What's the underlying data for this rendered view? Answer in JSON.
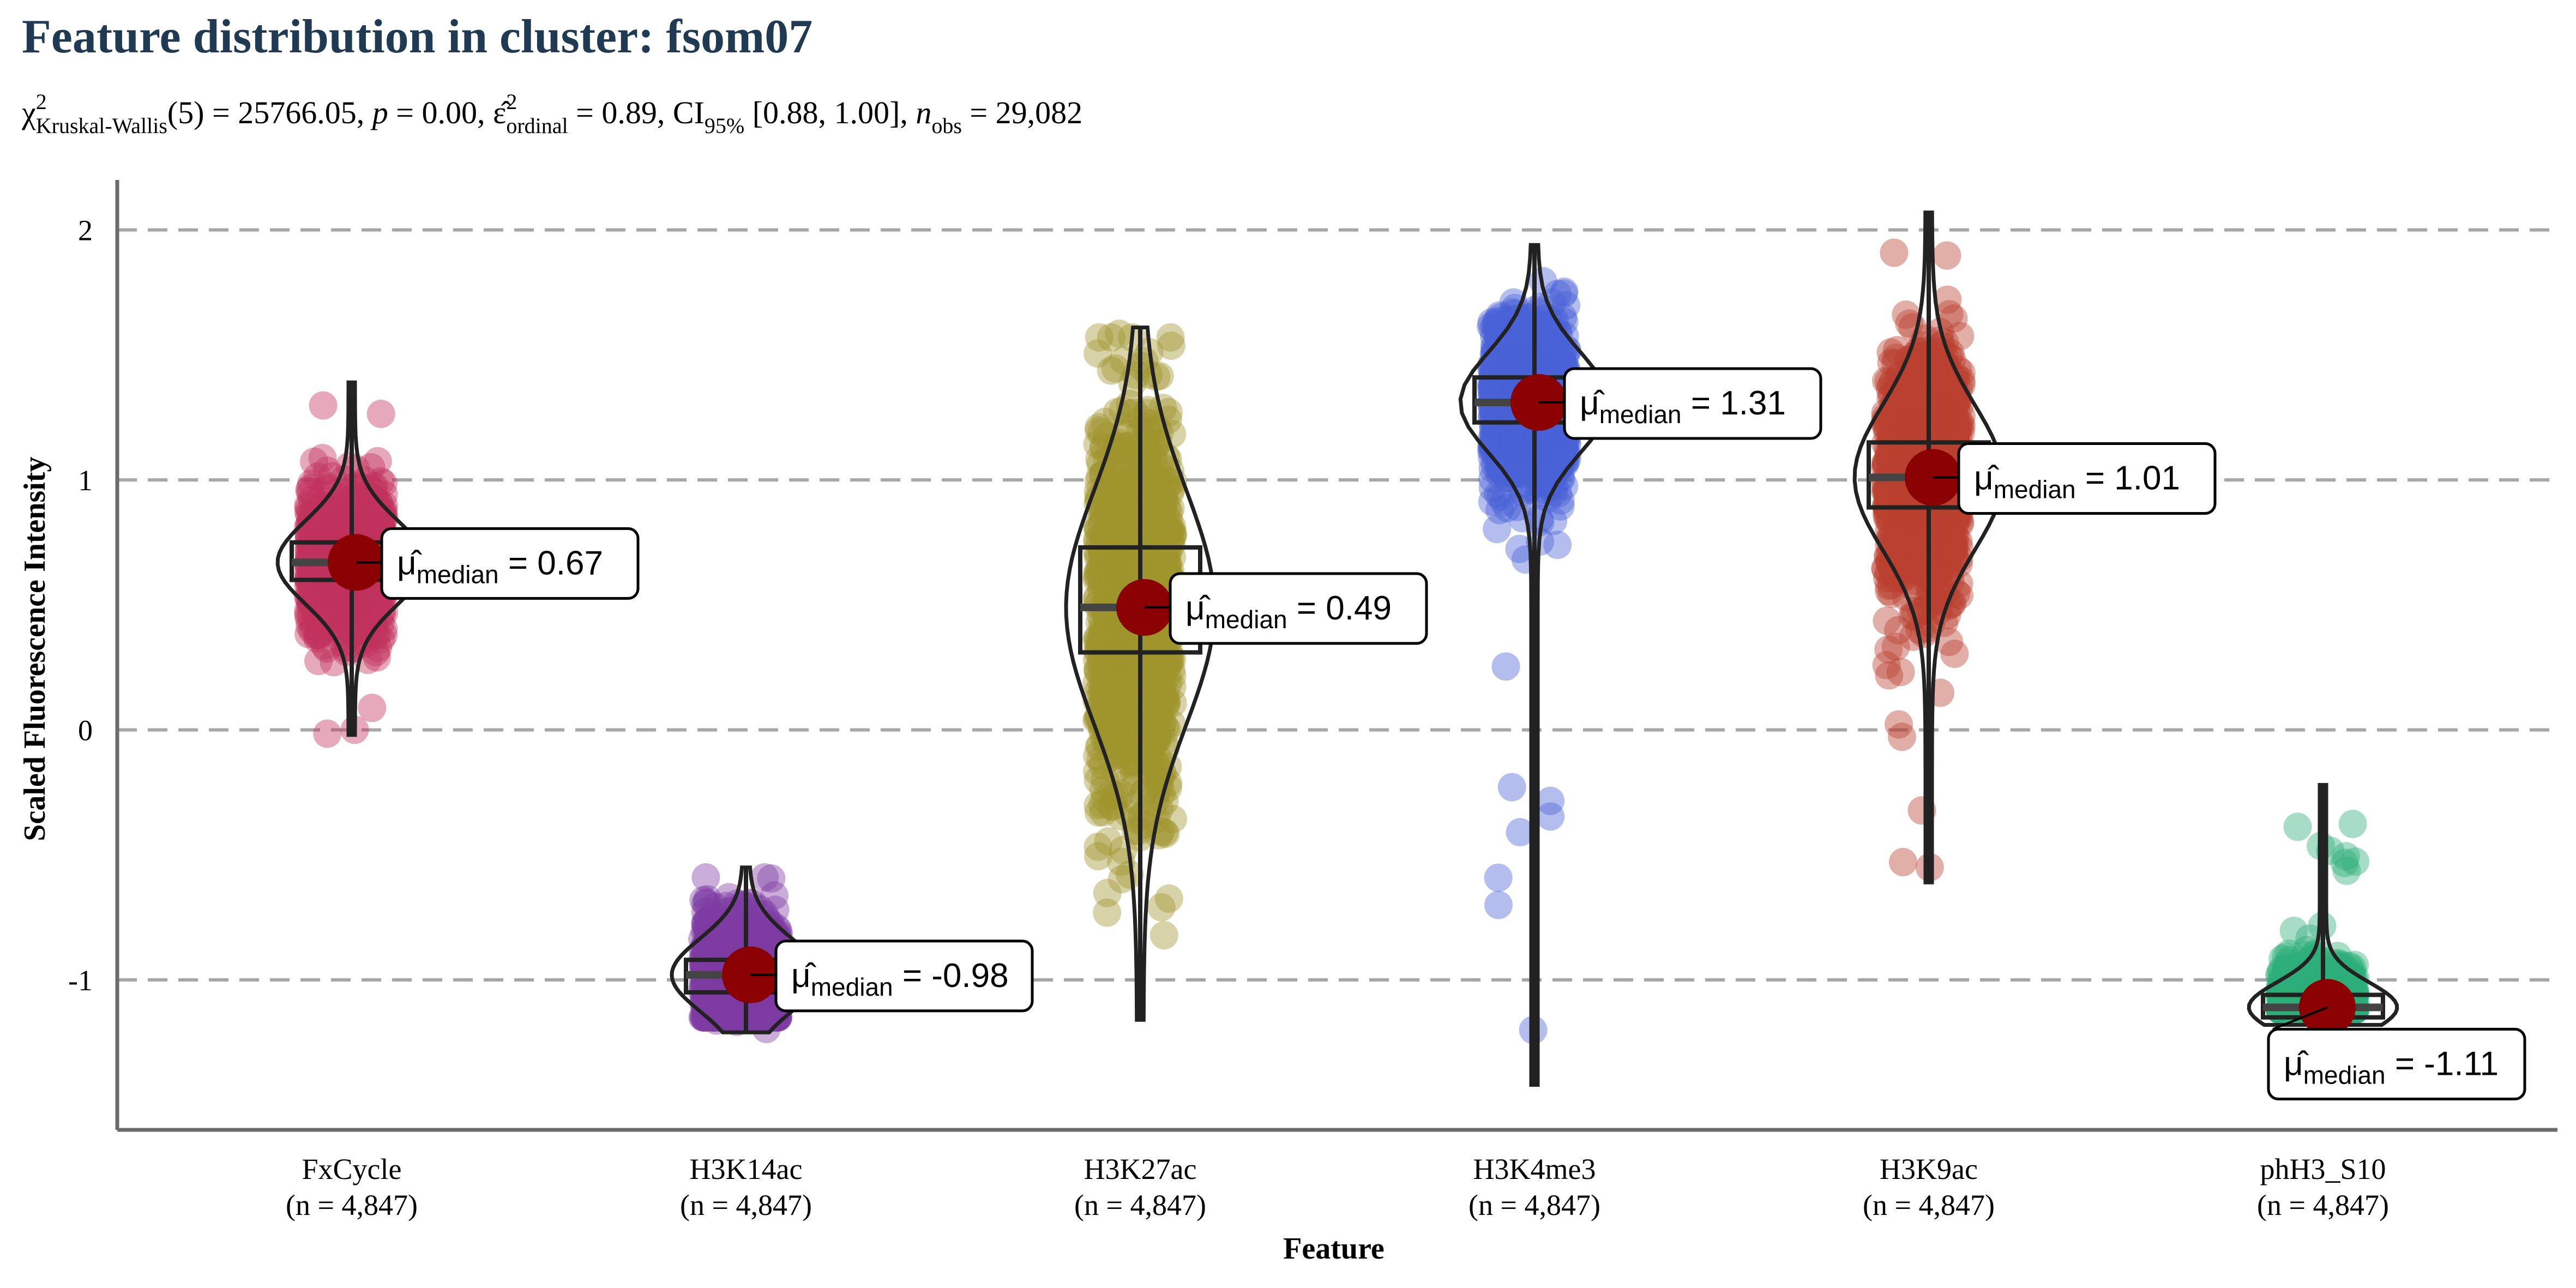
{
  "chart_data": {
    "type": "violin",
    "title": "Feature distribution in cluster: fsom07",
    "subtitle": {
      "chi_symbol": "χ",
      "chi_sup": "2",
      "chi_sub": "Kruskal-Wallis",
      "df": "(5) = 25766.05, ",
      "p_label": "p",
      "p_value": " = 0.00, ",
      "eps_symbol": "ε̂",
      "eps_sup": "2",
      "eps_sub": "ordinal",
      "eps_value": " = 0.89, CI",
      "ci_sub": "95%",
      "ci_value": " [0.88, 1.00], ",
      "n_label": "n",
      "n_sub": "obs",
      "n_value": " = 29,082"
    },
    "xlabel": "Feature",
    "ylabel": "Scaled Fluorescence Intensity",
    "ylim": [
      -1.6,
      2.2
    ],
    "yticks": [
      2,
      1,
      0,
      -1
    ],
    "ytick_labels": [
      "2",
      "1",
      "0",
      "-1"
    ],
    "grid": "horizontal dashed",
    "label_mu": "μ̂",
    "label_sub": "median",
    "categories": [
      "FxCycle",
      "H3K14ac",
      "H3K27ac",
      "H3K4me3",
      "H3K9ac",
      "phH3_S10"
    ],
    "n_labels": [
      "(n = 4,847)",
      "(n = 4,847)",
      "(n = 4,847)",
      "(n = 4,847)",
      "(n = 4,847)",
      "(n = 4,847)"
    ],
    "colors": [
      "#C2315E",
      "#7E3BA3",
      "#A0942D",
      "#4A62D6",
      "#B9412F",
      "#2EAE7A"
    ],
    "median_color": "#8B0000",
    "medians": [
      0.67,
      -0.98,
      0.49,
      1.31,
      1.01,
      -1.11
    ],
    "median_labels": [
      "= 0.67",
      "= -0.98",
      "= 0.49",
      "= 1.31",
      "= 1.01",
      "= -1.11"
    ],
    "q1": [
      0.6,
      -1.05,
      0.31,
      1.23,
      0.89,
      -1.15
    ],
    "q3": [
      0.75,
      -0.92,
      0.73,
      1.41,
      1.15,
      -1.06
    ],
    "whisker_low": [
      -0.02,
      -1.21,
      -1.16,
      -1.42,
      -0.61,
      -1.18
    ],
    "whisker_high": [
      1.39,
      -0.55,
      1.61,
      1.94,
      2.07,
      -0.22
    ]
  }
}
